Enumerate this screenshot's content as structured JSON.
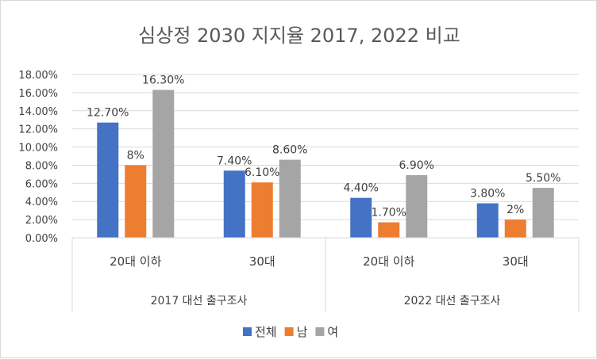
{
  "chart_data": {
    "type": "bar",
    "title": "심상정 2030 지지율 2017, 2022 비교",
    "xlabel": "",
    "ylabel": "",
    "ylim": [
      0,
      18
    ],
    "yticks": [
      "0.00%",
      "2.00%",
      "4.00%",
      "6.00%",
      "8.00%",
      "10.00%",
      "12.00%",
      "14.00%",
      "16.00%",
      "18.00%"
    ],
    "grid": true,
    "legend_position": "bottom",
    "groups": [
      {
        "label": "2017 대선 출구조사",
        "categories": [
          "20대 이하",
          "30대"
        ]
      },
      {
        "label": "2022 대선 출구조사",
        "categories": [
          "20대 이하",
          "30대"
        ]
      }
    ],
    "categories": [
      "20대 이하",
      "30대",
      "20대 이하",
      "30대"
    ],
    "series": [
      {
        "name": "전체",
        "color": "#4472c4",
        "values": [
          12.7,
          7.4,
          4.4,
          3.8
        ],
        "labels": [
          "12.70%",
          "7.40%",
          "4.40%",
          "3.80%"
        ]
      },
      {
        "name": "남",
        "color": "#ed7d31",
        "values": [
          8,
          6.1,
          1.7,
          2
        ],
        "labels": [
          "8%",
          "6.10%",
          "1.70%",
          "2%"
        ]
      },
      {
        "name": "여",
        "color": "#a5a5a5",
        "values": [
          16.3,
          8.6,
          6.9,
          5.5
        ],
        "labels": [
          "16.30%",
          "8.60%",
          "6.90%",
          "5.50%"
        ]
      }
    ]
  }
}
